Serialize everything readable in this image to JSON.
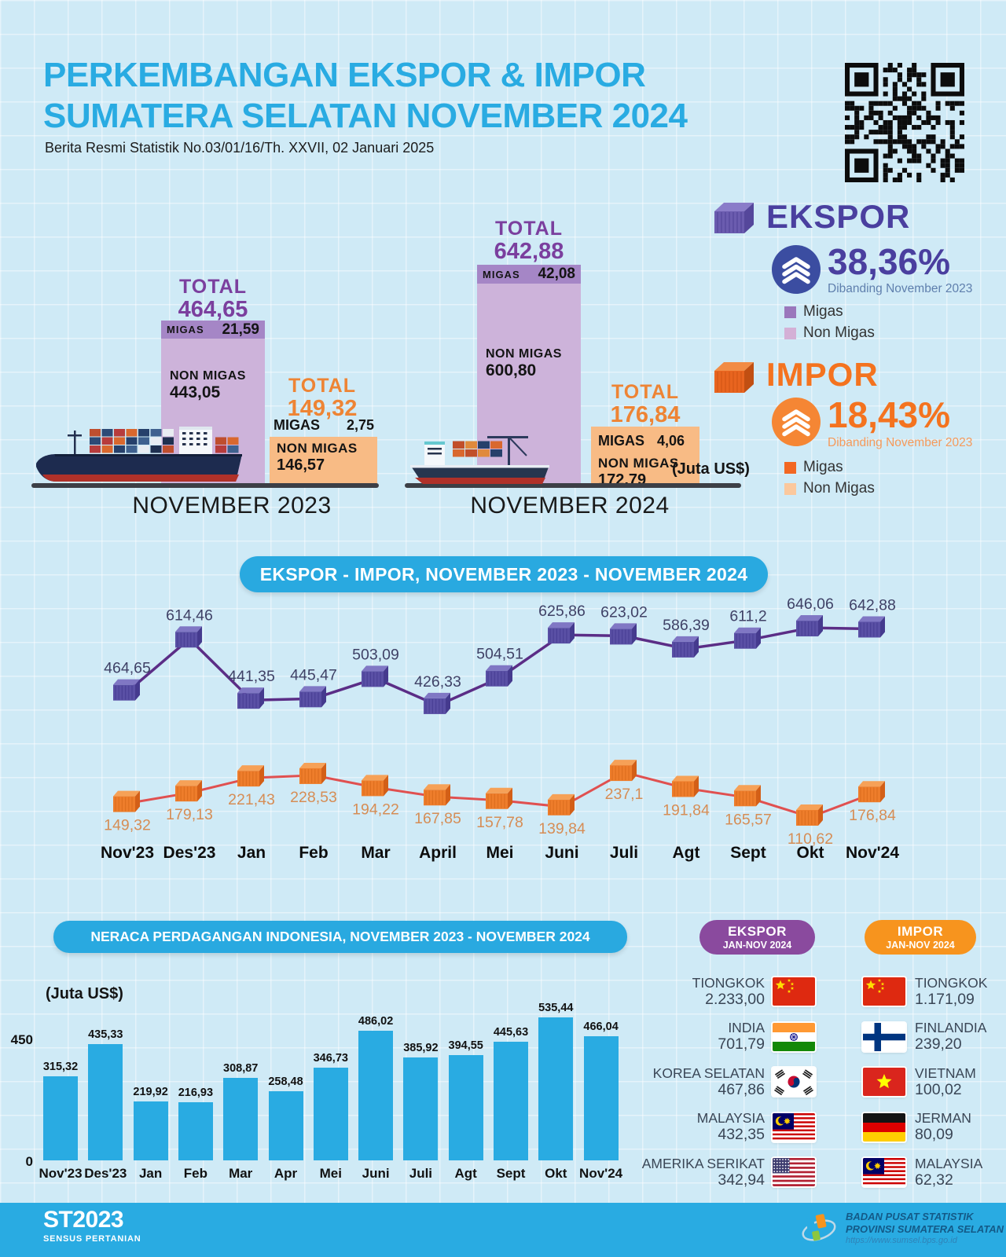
{
  "header": {
    "title_line1": "PERKEMBANGAN EKSPOR & IMPOR",
    "title_line2": "SUMATERA SELATAN NOVEMBER 2024",
    "subtitle": "Berita Resmi Statistik No.03/01/16/Th. XXVII, 02 Januari 2025"
  },
  "comparison": {
    "unit_note": "(Juta US$)",
    "nov2023": {
      "label": "NOVEMBER 2023",
      "ekspor": {
        "total_label": "TOTAL",
        "total": "464,65",
        "migas_label": "MIGAS",
        "migas": "21,59",
        "nonmigas_label": "NON MIGAS",
        "nonmigas": "443,05"
      },
      "impor": {
        "total_label": "TOTAL",
        "total": "149,32",
        "migas_label": "MIGAS",
        "migas": "2,75",
        "nonmigas_label": "NON MIGAS",
        "nonmigas": "146,57"
      }
    },
    "nov2024": {
      "label": "NOVEMBER 2024",
      "ekspor": {
        "total_label": "TOTAL",
        "total": "642,88",
        "migas_label": "MIGAS",
        "migas": "42,08",
        "nonmigas_label": "NON MIGAS",
        "nonmigas": "600,80"
      },
      "impor": {
        "total_label": "TOTAL",
        "total": "176,84",
        "migas_label": "MIGAS",
        "migas": "4,06",
        "nonmigas_label": "NON MIGAS",
        "nonmigas": "172,79"
      }
    }
  },
  "summary": {
    "ekspor": {
      "title": "EKSPOR",
      "percent": "38,36%",
      "note": "Dibanding November 2023",
      "legend": [
        "Migas",
        "Non Migas"
      ]
    },
    "impor": {
      "title": "IMPOR",
      "percent": "18,43%",
      "note": "Dibanding November 2023",
      "legend": [
        "Migas",
        "Non Migas"
      ]
    }
  },
  "chart_data": [
    {
      "type": "line",
      "title": "EKSPOR - IMPOR, NOVEMBER 2023 - NOVEMBER 2024",
      "categories": [
        "Nov'23",
        "Des'23",
        "Jan",
        "Feb",
        "Mar",
        "April",
        "Mei",
        "Juni",
        "Juli",
        "Agt",
        "Sept",
        "Okt",
        "Nov'24"
      ],
      "series": [
        {
          "name": "Ekspor",
          "values": [
            464.65,
            614.46,
            441.35,
            445.47,
            503.09,
            426.33,
            504.51,
            625.86,
            623.02,
            586.39,
            611.2,
            646.06,
            642.88
          ],
          "labels": [
            "464,65",
            "614,46",
            "441,35",
            "445,47",
            "503,09",
            "426,33",
            "504,51",
            "625,86",
            "623,02",
            "586,39",
            "611,2",
            "646,06",
            "642,88"
          ]
        },
        {
          "name": "Impor",
          "values": [
            149.32,
            179.13,
            221.43,
            228.53,
            194.22,
            167.85,
            157.78,
            139.84,
            237.1,
            191.84,
            165.57,
            110.62,
            176.84
          ],
          "labels": [
            "149,32",
            "179,13",
            "221,43",
            "228,53",
            "194,22",
            "167,85",
            "157,78",
            "139,84",
            "237,1",
            "191,84",
            "165,57",
            "110,62",
            "176,84"
          ]
        }
      ],
      "legend_position": "none",
      "grid": true
    },
    {
      "type": "bar",
      "title": "NERACA PERDAGANGAN INDONESIA, NOVEMBER 2023 - NOVEMBER 2024",
      "unit": "(Juta US$)",
      "categories": [
        "Nov'23",
        "Des'23",
        "Jan",
        "Feb",
        "Mar",
        "Apr",
        "Mei",
        "Juni",
        "Juli",
        "Agt",
        "Sept",
        "Okt",
        "Nov'24"
      ],
      "values": [
        315.32,
        435.33,
        219.92,
        216.93,
        308.87,
        258.48,
        346.73,
        486.02,
        385.92,
        394.55,
        445.63,
        535.44,
        466.04
      ],
      "labels": [
        "315,32",
        "435,33",
        "219,92",
        "216,93",
        "308,87",
        "258,48",
        "346,73",
        "486,02",
        "385,92",
        "394,55",
        "445,63",
        "535,44",
        "466,04"
      ],
      "yticks": [
        "450",
        "0"
      ],
      "ylim": [
        0,
        560
      ]
    }
  ],
  "partners": {
    "ekspor": {
      "title_line1": "EKSPOR",
      "title_line2": "JAN-NOV 2024",
      "items": [
        {
          "name": "TIONGKOK",
          "value": "2.233,00",
          "flag": "china"
        },
        {
          "name": "INDIA",
          "value": "701,79",
          "flag": "india"
        },
        {
          "name": "KOREA SELATAN",
          "value": "467,86",
          "flag": "south-korea"
        },
        {
          "name": "MALAYSIA",
          "value": "432,35",
          "flag": "malaysia"
        },
        {
          "name": "AMERIKA SERIKAT",
          "value": "342,94",
          "flag": "usa"
        }
      ]
    },
    "impor": {
      "title_line1": "IMPOR",
      "title_line2": "JAN-NOV 2024",
      "items": [
        {
          "name": "TIONGKOK",
          "value": "1.171,09",
          "flag": "china"
        },
        {
          "name": "FINLANDIA",
          "value": "239,20",
          "flag": "finland"
        },
        {
          "name": "VIETNAM",
          "value": "100,02",
          "flag": "vietnam"
        },
        {
          "name": "JERMAN",
          "value": "80,09",
          "flag": "germany"
        },
        {
          "name": "MALAYSIA",
          "value": "62,32",
          "flag": "malaysia"
        }
      ]
    }
  },
  "footer": {
    "st_line1": "ST2023",
    "st_line2": "SENSUS PERTANIAN",
    "bps_line1": "BADAN PUSAT STATISTIK",
    "bps_line2": "PROVINSI SUMATERA SELATAN",
    "bps_line3": "https://www.sumsel.bps.go.id"
  },
  "colors": {
    "accent_blue": "#29abe2",
    "ekspor_purple": "#4a3f9f",
    "ekspor_total": "#7b3f9e",
    "ekspor_migas": "#a586c6",
    "ekspor_nonmigas": "#cdb3da",
    "ekspor_line": "#5b2d86",
    "impor_orange": "#f4731f",
    "impor_total": "#ee8434",
    "impor_migas": "#f26722",
    "impor_nonmigas": "#f8bb85",
    "impor_line": "#e05050",
    "legend_ekspor_migas": "#9a77bc",
    "legend_ekspor_nonmigas": "#d4b0d6",
    "legend_impor_migas": "#f26722",
    "legend_impor_nonmigas": "#fbc89d",
    "bar_blue": "#29abe2"
  }
}
